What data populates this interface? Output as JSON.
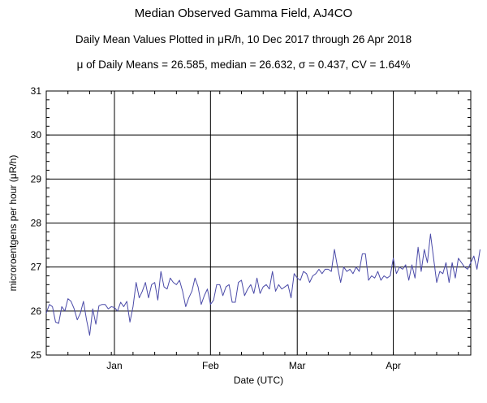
{
  "chart_data": {
    "type": "line",
    "title": "Median Observed Gamma Field, AJ4CO",
    "subtitle": "Daily Mean Values Plotted in μR/h, 10 Dec 2017 through 26 Apr 2018",
    "stats_line": "μ of Daily Means = 26.585,   median = 26.632,   σ = 0.437,   CV = 1.64%",
    "xlabel": "Date (UTC)",
    "ylabel": "microroentgens per hour (μR/h)",
    "ylim": [
      25,
      31
    ],
    "yticks": [
      "25",
      "26",
      "27",
      "28",
      "29",
      "30",
      "31"
    ],
    "xlim": [
      "2017-12-10",
      "2018-04-26"
    ],
    "xticks": [
      {
        "label": "Jan",
        "date": "2018-01-01"
      },
      {
        "label": "Feb",
        "date": "2018-02-01"
      },
      {
        "label": "Mar",
        "date": "2018-03-01"
      },
      {
        "label": "Apr",
        "date": "2018-04-01"
      }
    ],
    "grid": true,
    "line_color": "#4a4aa8",
    "series": [
      {
        "x_start": "2017-12-10",
        "x_step_days": 1,
        "values": [
          25.95,
          26.15,
          26.1,
          25.75,
          25.72,
          26.1,
          26.0,
          26.28,
          26.22,
          26.05,
          25.8,
          25.95,
          26.22,
          25.8,
          25.45,
          26.05,
          25.7,
          26.12,
          26.15,
          26.15,
          26.05,
          26.1,
          26.08,
          26.0,
          26.2,
          26.1,
          26.22,
          25.75,
          26.1,
          26.65,
          26.3,
          26.45,
          26.65,
          26.3,
          26.6,
          26.65,
          26.25,
          26.9,
          26.55,
          26.5,
          26.75,
          26.65,
          26.6,
          26.7,
          26.45,
          26.1,
          26.3,
          26.45,
          26.75,
          26.55,
          26.15,
          26.35,
          26.5,
          26.15,
          26.25,
          26.6,
          26.6,
          26.35,
          26.55,
          26.6,
          26.2,
          26.2,
          26.65,
          26.7,
          26.35,
          26.5,
          26.6,
          26.4,
          26.75,
          26.4,
          26.55,
          26.6,
          26.5,
          26.9,
          26.45,
          26.6,
          26.5,
          26.55,
          26.6,
          26.3,
          26.85,
          26.75,
          26.7,
          26.9,
          26.85,
          26.65,
          26.8,
          26.85,
          26.95,
          26.85,
          26.95,
          26.95,
          26.9,
          27.4,
          27.0,
          26.65,
          27.0,
          26.9,
          26.95,
          26.85,
          27.0,
          26.9,
          27.3,
          27.3,
          26.7,
          26.8,
          26.75,
          26.9,
          26.7,
          26.8,
          26.75,
          26.8,
          27.2,
          26.85,
          27.0,
          26.95,
          27.05,
          26.7,
          27.05,
          26.75,
          27.45,
          26.9,
          27.4,
          27.1,
          27.75,
          27.2,
          26.65,
          26.9,
          26.85,
          27.1,
          26.65,
          27.1,
          26.75,
          27.2,
          27.1,
          27.0,
          26.95,
          27.1,
          27.25,
          26.95,
          27.4
        ]
      }
    ]
  }
}
